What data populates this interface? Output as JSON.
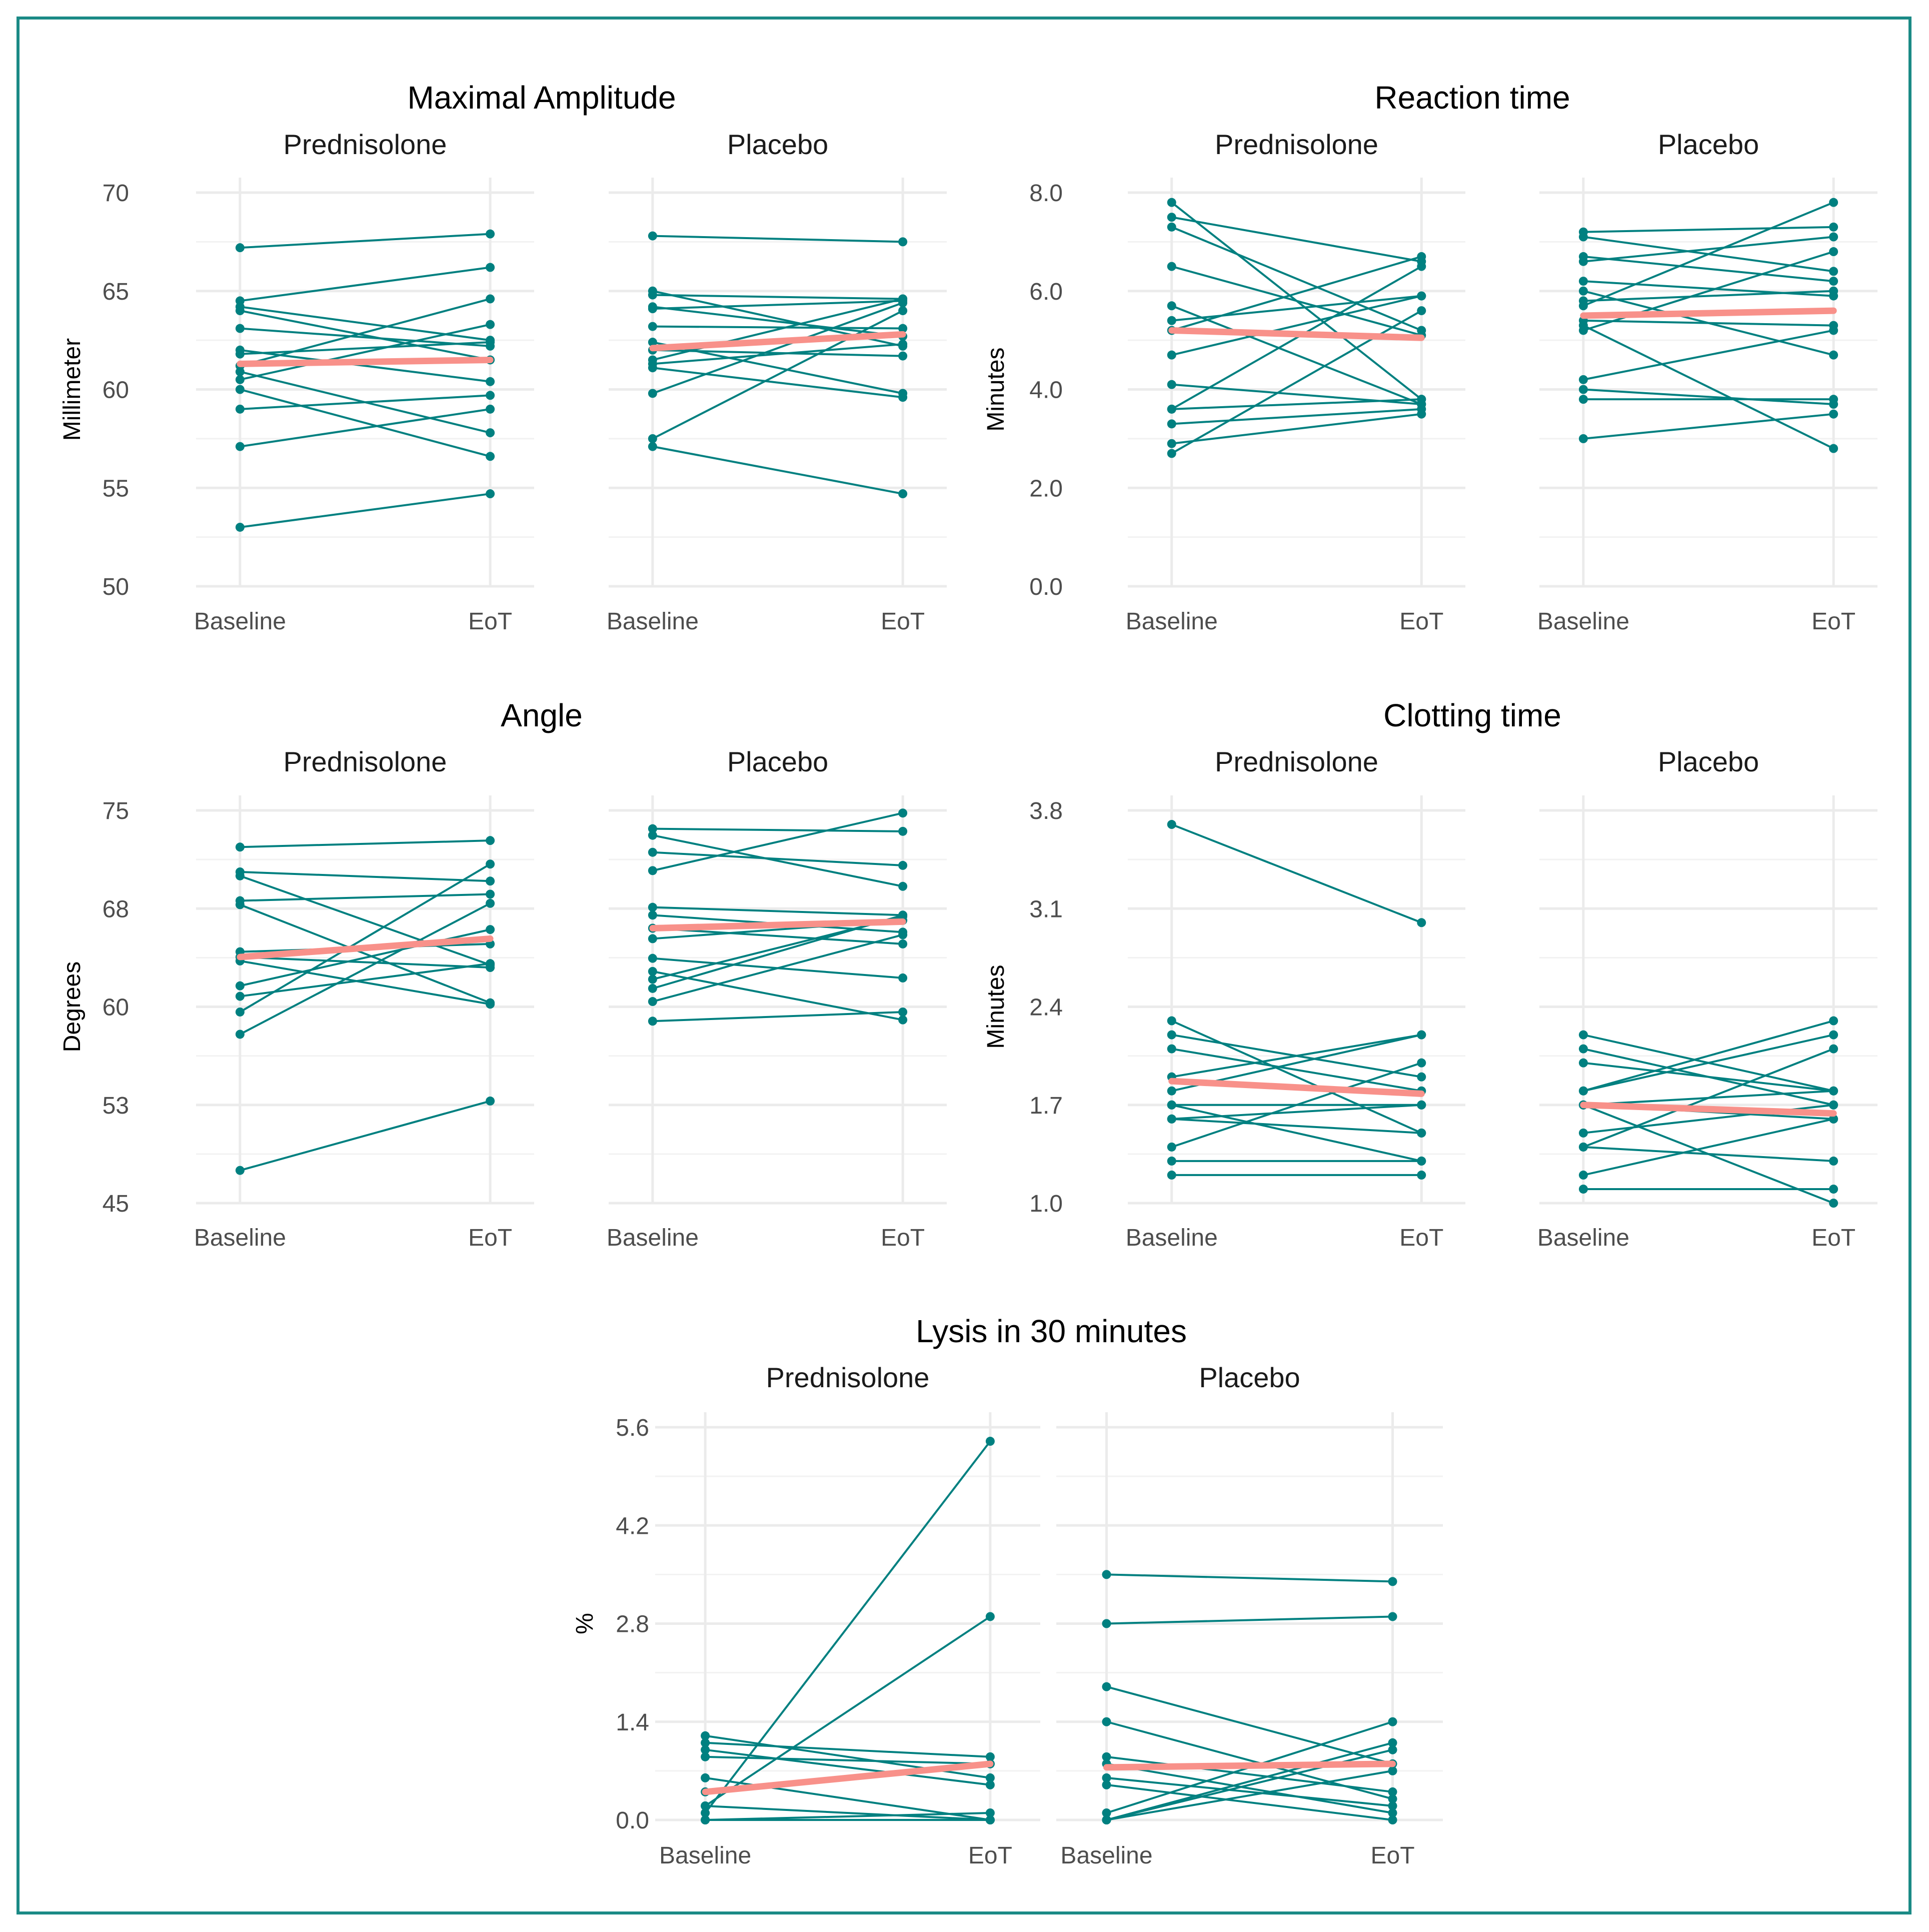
{
  "colors": {
    "subject": "#008080",
    "mean": "#F8918A",
    "border": "#1b8a86"
  },
  "chart_data": [
    {
      "type": "line",
      "title": "Maximal Amplitude",
      "ylabel": "Millimeter",
      "xlabel": "",
      "ylim": [
        50,
        70
      ],
      "yticks": [
        50,
        55,
        60,
        65,
        70
      ],
      "ytick_labels": [
        "50",
        "55",
        "60",
        "65",
        "70"
      ],
      "categories": [
        "Baseline",
        "EoT"
      ],
      "facets": [
        {
          "label": "Prednisolone",
          "subjects": [
            [
              67.2,
              67.9
            ],
            [
              64.5,
              66.2
            ],
            [
              64.2,
              62.5
            ],
            [
              64.0,
              61.5
            ],
            [
              63.1,
              62.2
            ],
            [
              62.0,
              60.4
            ],
            [
              61.8,
              62.4
            ],
            [
              61.2,
              64.6
            ],
            [
              60.9,
              57.8
            ],
            [
              60.5,
              63.3
            ],
            [
              60.0,
              56.6
            ],
            [
              59.0,
              59.7
            ],
            [
              57.1,
              59.0
            ],
            [
              53.0,
              54.7
            ]
          ],
          "mean": [
            61.3,
            61.5
          ]
        },
        {
          "label": "Placebo",
          "subjects": [
            [
              67.8,
              67.5
            ],
            [
              65.0,
              62.2
            ],
            [
              64.8,
              64.6
            ],
            [
              64.2,
              62.7
            ],
            [
              64.1,
              64.5
            ],
            [
              63.2,
              63.1
            ],
            [
              62.4,
              59.8
            ],
            [
              62.0,
              61.7
            ],
            [
              61.5,
              64.6
            ],
            [
              61.3,
              62.3
            ],
            [
              61.1,
              59.6
            ],
            [
              59.8,
              64.4
            ],
            [
              57.5,
              64.0
            ],
            [
              57.1,
              54.7
            ]
          ],
          "mean": [
            62.1,
            62.8
          ]
        }
      ]
    },
    {
      "type": "line",
      "title": "Reaction time",
      "ylabel": "Minutes",
      "xlabel": "",
      "ylim": [
        0,
        8
      ],
      "yticks": [
        0,
        2,
        4,
        6,
        8
      ],
      "ytick_labels": [
        "0.0",
        "2.0",
        "4.0",
        "6.0",
        "8.0"
      ],
      "categories": [
        "Baseline",
        "EoT"
      ],
      "facets": [
        {
          "label": "Prednisolone",
          "subjects": [
            [
              7.8,
              3.8
            ],
            [
              7.5,
              6.6
            ],
            [
              7.3,
              5.2
            ],
            [
              6.5,
              5.1
            ],
            [
              5.7,
              3.7
            ],
            [
              5.4,
              5.9
            ],
            [
              5.2,
              6.7
            ],
            [
              4.7,
              5.9
            ],
            [
              4.1,
              3.7
            ],
            [
              3.6,
              3.8
            ],
            [
              3.6,
              6.5
            ],
            [
              3.3,
              3.6
            ],
            [
              2.9,
              3.5
            ],
            [
              2.7,
              5.6
            ]
          ],
          "mean": [
            5.2,
            5.05
          ]
        },
        {
          "label": "Placebo",
          "subjects": [
            [
              7.2,
              7.3
            ],
            [
              7.1,
              6.4
            ],
            [
              6.7,
              6.2
            ],
            [
              6.6,
              7.1
            ],
            [
              6.2,
              5.9
            ],
            [
              6.0,
              4.7
            ],
            [
              5.8,
              6.0
            ],
            [
              5.7,
              7.8
            ],
            [
              5.4,
              5.3
            ],
            [
              5.3,
              2.8
            ],
            [
              5.2,
              6.8
            ],
            [
              4.2,
              5.2
            ],
            [
              4.0,
              3.7
            ],
            [
              3.8,
              3.8
            ],
            [
              3.0,
              3.5
            ]
          ],
          "mean": [
            5.5,
            5.6
          ]
        }
      ]
    },
    {
      "type": "line",
      "title": "Angle",
      "ylabel": "Degrees",
      "xlabel": "",
      "ylim": [
        45,
        75
      ],
      "yticks": [
        45,
        52.5,
        60,
        67.5,
        75
      ],
      "ytick_labels": [
        "45",
        "53",
        "60",
        "68",
        "75"
      ],
      "categories": [
        "Baseline",
        "EoT"
      ],
      "facets": [
        {
          "label": "Prednisolone",
          "subjects": [
            [
              72.2,
              72.7
            ],
            [
              70.3,
              69.6
            ],
            [
              70.0,
              63.2
            ],
            [
              68.1,
              68.6
            ],
            [
              67.8,
              60.3
            ],
            [
              64.2,
              64.8
            ],
            [
              63.8,
              63.0
            ],
            [
              63.5,
              60.2
            ],
            [
              61.6,
              65.9
            ],
            [
              60.8,
              63.3
            ],
            [
              59.6,
              70.9
            ],
            [
              57.9,
              67.9
            ],
            [
              47.5,
              52.8
            ]
          ],
          "mean": [
            63.8,
            65.2
          ]
        },
        {
          "label": "Placebo",
          "subjects": [
            [
              73.6,
              73.4
            ],
            [
              73.1,
              69.2
            ],
            [
              71.8,
              70.8
            ],
            [
              70.4,
              74.8
            ],
            [
              67.6,
              67.0
            ],
            [
              67.0,
              65.7
            ],
            [
              66.0,
              64.8
            ],
            [
              65.2,
              66.6
            ],
            [
              63.7,
              62.2
            ],
            [
              62.7,
              59.0
            ],
            [
              62.1,
              66.9
            ],
            [
              61.4,
              67.0
            ],
            [
              60.4,
              65.5
            ],
            [
              58.9,
              59.6
            ]
          ],
          "mean": [
            66.0,
            66.5
          ]
        }
      ]
    },
    {
      "type": "line",
      "title": "Clotting time",
      "ylabel": "Minutes",
      "xlabel": "",
      "ylim": [
        1.0,
        3.8
      ],
      "yticks": [
        1.0,
        1.7,
        2.4,
        3.1,
        3.8
      ],
      "ytick_labels": [
        "1.0",
        "1.7",
        "2.4",
        "3.1",
        "3.8"
      ],
      "categories": [
        "Baseline",
        "EoT"
      ],
      "facets": [
        {
          "label": "Prednisolone",
          "subjects": [
            [
              3.7,
              3.0
            ],
            [
              2.3,
              1.5
            ],
            [
              2.2,
              1.9
            ],
            [
              2.1,
              1.8
            ],
            [
              1.9,
              2.2
            ],
            [
              1.8,
              2.2
            ],
            [
              1.7,
              1.7
            ],
            [
              1.7,
              1.3
            ],
            [
              1.6,
              1.5
            ],
            [
              1.6,
              1.7
            ],
            [
              1.4,
              2.0
            ],
            [
              1.3,
              1.3
            ],
            [
              1.2,
              1.2
            ]
          ],
          "mean": [
            1.87,
            1.78
          ]
        },
        {
          "label": "Placebo",
          "subjects": [
            [
              2.2,
              1.8
            ],
            [
              2.1,
              1.7
            ],
            [
              2.0,
              1.8
            ],
            [
              1.8,
              2.3
            ],
            [
              1.8,
              2.2
            ],
            [
              1.7,
              1.6
            ],
            [
              1.7,
              1.0
            ],
            [
              1.7,
              1.8
            ],
            [
              1.5,
              1.7
            ],
            [
              1.4,
              2.1
            ],
            [
              1.4,
              1.3
            ],
            [
              1.2,
              1.6
            ],
            [
              1.1,
              1.1
            ]
          ],
          "mean": [
            1.7,
            1.64
          ]
        }
      ]
    },
    {
      "type": "line",
      "title": "Lysis in 30 minutes",
      "ylabel": "%",
      "xlabel": "",
      "ylim": [
        0,
        5.6
      ],
      "yticks": [
        0,
        1.4,
        2.8,
        4.2,
        5.6
      ],
      "ytick_labels": [
        "0.0",
        "1.4",
        "2.8",
        "4.2",
        "5.6"
      ],
      "categories": [
        "Baseline",
        "EoT"
      ],
      "facets": [
        {
          "label": "Prednisolone",
          "subjects": [
            [
              1.2,
              0.6
            ],
            [
              1.1,
              0.9
            ],
            [
              1.0,
              0.5
            ],
            [
              0.9,
              0.8
            ],
            [
              0.6,
              0.0
            ],
            [
              0.4,
              0.8
            ],
            [
              0.2,
              2.9
            ],
            [
              0.2,
              0.0
            ],
            [
              0.1,
              5.4
            ],
            [
              0.0,
              0.1
            ],
            [
              0.0,
              0.0
            ]
          ],
          "mean": [
            0.4,
            0.8
          ]
        },
        {
          "label": "Placebo",
          "subjects": [
            [
              3.5,
              3.4
            ],
            [
              2.8,
              2.9
            ],
            [
              1.9,
              0.8
            ],
            [
              1.4,
              0.3
            ],
            [
              0.9,
              0.4
            ],
            [
              0.8,
              0.1
            ],
            [
              0.6,
              0.2
            ],
            [
              0.5,
              0.0
            ],
            [
              0.1,
              1.4
            ],
            [
              0.0,
              1.1
            ],
            [
              0.0,
              1.0
            ],
            [
              0.0,
              0.7
            ]
          ],
          "mean": [
            0.75,
            0.8
          ]
        }
      ]
    }
  ]
}
